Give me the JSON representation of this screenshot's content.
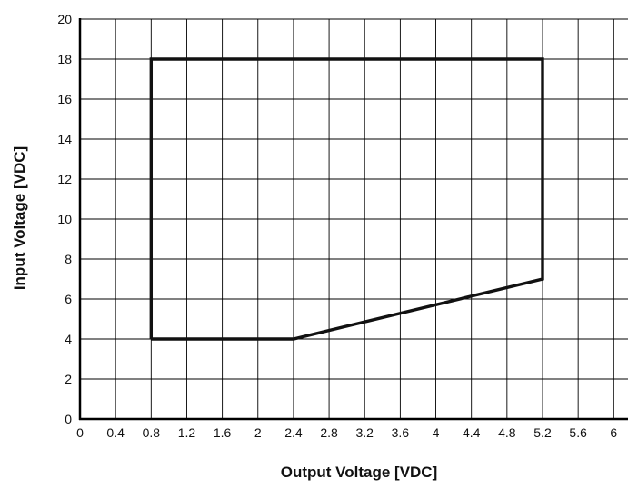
{
  "chart_data": {
    "type": "line",
    "title": "",
    "xlabel": "Output Voltage [VDC]",
    "ylabel": "Input Voltage [VDC]",
    "xlim": [
      0,
      6.2
    ],
    "ylim": [
      0,
      20
    ],
    "x_ticks": [
      0,
      0.4,
      0.8,
      1.2,
      1.6,
      2,
      2.4,
      2.8,
      3.2,
      3.6,
      4,
      4.4,
      4.8,
      5.2,
      5.6,
      6
    ],
    "x_tick_labels": [
      "0",
      "0.4",
      "0.8",
      "1.2",
      "1.6",
      "2",
      "2.4",
      "2.8",
      "3.2",
      "3.6",
      "4",
      "4.4",
      "4.8",
      "5.2",
      "5.6",
      "6"
    ],
    "y_ticks": [
      0,
      2,
      4,
      6,
      8,
      10,
      12,
      14,
      16,
      18,
      20
    ],
    "y_tick_labels": [
      "0",
      "2",
      "4",
      "6",
      "8",
      "10",
      "12",
      "14",
      "16",
      "18",
      "20"
    ],
    "grid": true,
    "legend": "none",
    "series": [
      {
        "points": [
          [
            0.8,
            4
          ],
          [
            0.8,
            18
          ],
          [
            5.2,
            18
          ],
          [
            5.2,
            7
          ],
          [
            2.4,
            4
          ],
          [
            0.8,
            4
          ]
        ],
        "color": "#111111"
      }
    ]
  }
}
